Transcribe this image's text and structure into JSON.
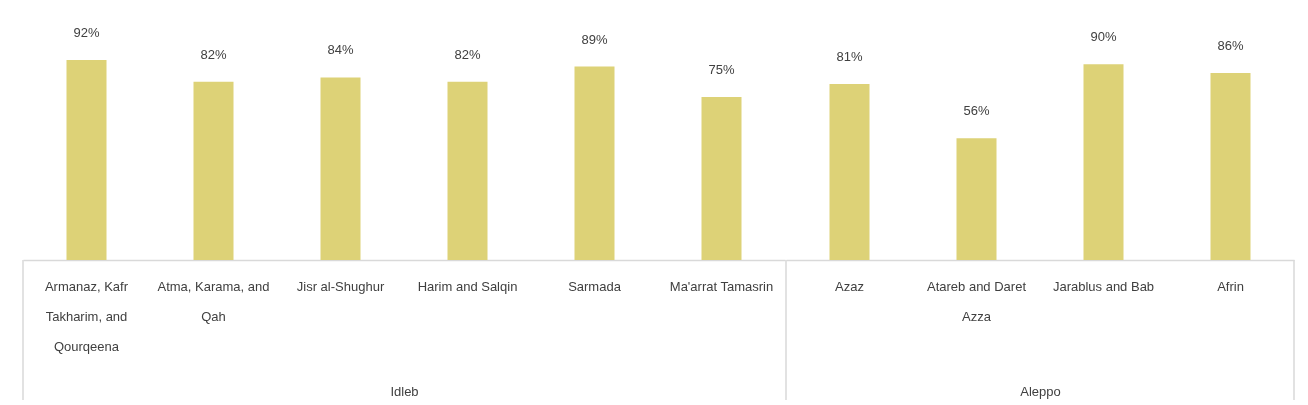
{
  "chart_data": [
    {
      "type": "bar",
      "categories": [
        "Armanaz, Kafr Takharim, and Qourqeena",
        "Atma, Karama, and Qah",
        "Jisr al-Shughur",
        "Harim and Salqin",
        "Sarmada",
        "Ma'arrat Tamasrin"
      ],
      "values": [
        92,
        82,
        84,
        82,
        89,
        75
      ],
      "value_labels": [
        "92%",
        "82%",
        "84%",
        "82%",
        "89%",
        "75%"
      ],
      "color": "#ddd277",
      "xlabel": "Idleb",
      "tick_labels": "x"
    },
    {
      "type": "bar",
      "categories": [
        "Azaz",
        "Atareb and Daret Azza",
        "Jarablus and Bab",
        "Afrin"
      ],
      "values": [
        81,
        56,
        90,
        86
      ],
      "value_labels": [
        "81%",
        "56%",
        "90%",
        "86%"
      ],
      "color": "#ddd277",
      "xlabel": "Aleppo",
      "tick_labels": "x"
    }
  ]
}
